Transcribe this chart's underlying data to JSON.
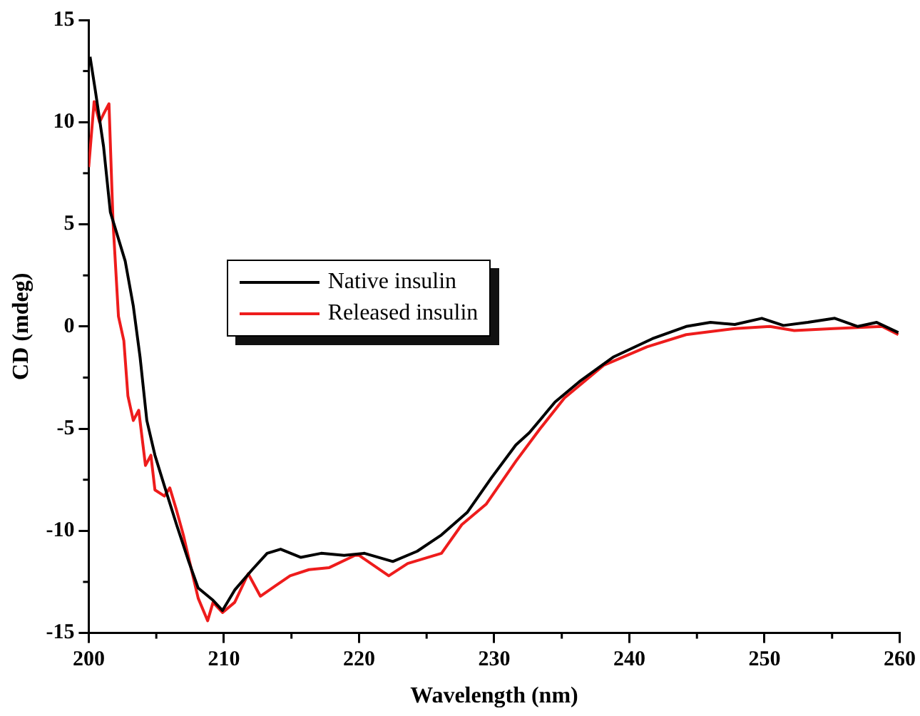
{
  "chart_data": {
    "type": "line",
    "xlabel": "Wavelength (nm)",
    "ylabel": "CD (mdeg)",
    "xlim": [
      200,
      260
    ],
    "xticks": [
      200,
      210,
      220,
      230,
      240,
      250,
      260
    ],
    "ylim": [
      -15,
      15
    ],
    "yticks": [
      -15,
      -10,
      -5,
      0,
      5,
      10,
      15
    ],
    "grid": false,
    "legend": "left",
    "marker": "none",
    "line_style": "solid",
    "series": [
      {
        "name": "Native insulin",
        "color": "#000000",
        "x": [
          200.1,
          200.5,
          201.1,
          201.6,
          202.7,
          203.3,
          203.8,
          204.3,
          204.9,
          205.6,
          206.5,
          207.4,
          208.1,
          209.2,
          209.9,
          210.8,
          212.1,
          213.2,
          214.2,
          215.7,
          217.2,
          218.9,
          220.4,
          222.5,
          224.3,
          226.1,
          228.0,
          229.8,
          231.6,
          232.6,
          234.5,
          236.3,
          238.8,
          241.7,
          244.2,
          246.0,
          247.8,
          249.8,
          251.4,
          253.2,
          255.2,
          256.9,
          258.3,
          259.9
        ],
        "values": [
          13.2,
          11.5,
          8.8,
          5.6,
          3.2,
          1.0,
          -1.5,
          -4.6,
          -6.3,
          -7.8,
          -9.7,
          -11.5,
          -12.8,
          -13.4,
          -13.9,
          -12.9,
          -11.9,
          -11.1,
          -10.9,
          -11.3,
          -11.1,
          -11.2,
          -11.1,
          -11.5,
          -11.0,
          -10.2,
          -9.1,
          -7.4,
          -5.8,
          -5.2,
          -3.7,
          -2.7,
          -1.5,
          -0.6,
          0.0,
          0.2,
          0.1,
          0.4,
          0.05,
          0.2,
          0.4,
          0.0,
          0.2,
          -0.3
        ]
      },
      {
        "name": "Released insulin",
        "color": "#ee1c1c",
        "x": [
          200.0,
          200.4,
          200.8,
          201.1,
          201.5,
          201.8,
          202.2,
          202.6,
          202.9,
          203.3,
          203.7,
          204.2,
          204.6,
          204.9,
          205.6,
          206.0,
          206.5,
          207.0,
          207.6,
          208.1,
          208.8,
          209.2,
          209.9,
          210.8,
          211.8,
          212.7,
          213.8,
          214.9,
          216.3,
          217.8,
          219.7,
          220.0,
          222.2,
          223.6,
          226.1,
          227.6,
          229.4,
          231.6,
          233.4,
          235.2,
          238.1,
          241.3,
          244.2,
          247.8,
          250.4,
          252.2,
          255.1,
          258.7,
          259.9
        ],
        "values": [
          7.8,
          11.0,
          10.0,
          10.4,
          10.9,
          5.1,
          0.5,
          -0.7,
          -3.4,
          -4.6,
          -4.1,
          -6.8,
          -6.3,
          -8.0,
          -8.3,
          -7.9,
          -9.0,
          -10.2,
          -11.9,
          -13.3,
          -14.4,
          -13.5,
          -14.0,
          -13.5,
          -12.1,
          -13.2,
          -12.7,
          -12.2,
          -11.9,
          -11.8,
          -11.2,
          -11.2,
          -12.2,
          -11.6,
          -11.1,
          -9.7,
          -8.7,
          -6.6,
          -5.0,
          -3.5,
          -1.9,
          -1.0,
          -0.4,
          -0.1,
          0.0,
          -0.2,
          -0.1,
          0.0,
          -0.4
        ]
      }
    ]
  }
}
